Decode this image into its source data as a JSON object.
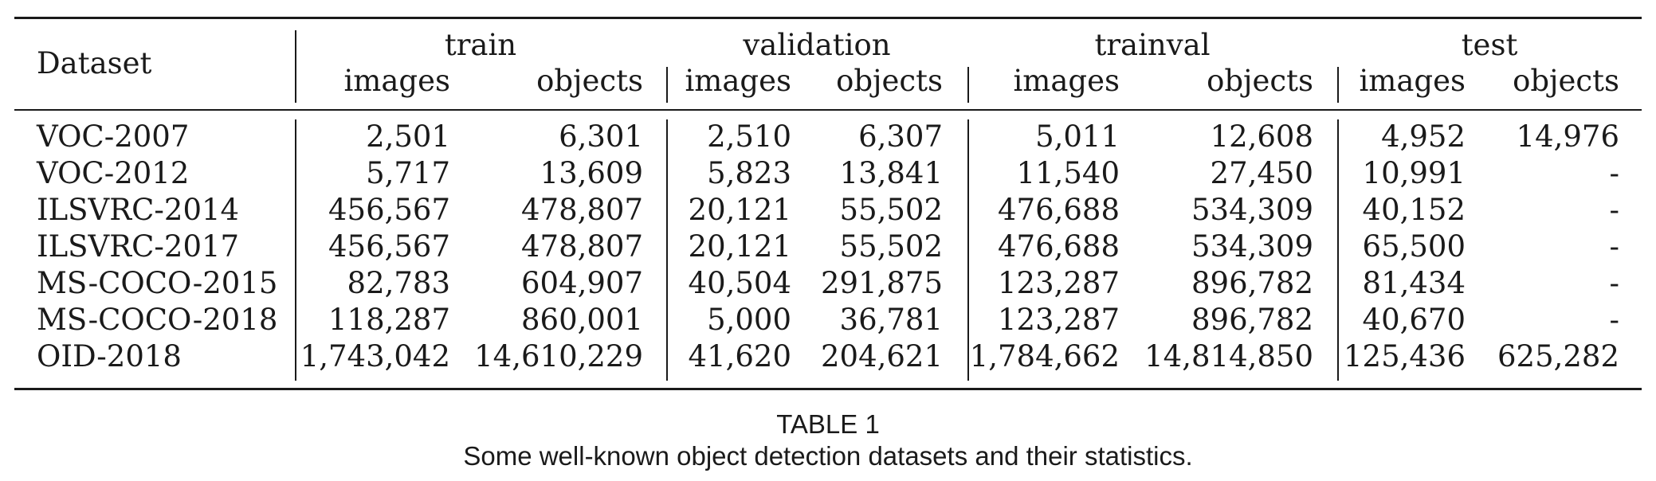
{
  "table": {
    "dataset_header": "Dataset",
    "groups": [
      "train",
      "validation",
      "trainval",
      "test"
    ],
    "subheaders": [
      "images",
      "objects",
      "images",
      "objects",
      "images",
      "objects",
      "images",
      "objects"
    ],
    "rows": [
      {
        "name": "VOC-2007",
        "cells": [
          "2,501",
          "6,301",
          "2,510",
          "6,307",
          "5,011",
          "12,608",
          "4,952",
          "14,976"
        ]
      },
      {
        "name": "VOC-2012",
        "cells": [
          "5,717",
          "13,609",
          "5,823",
          "13,841",
          "11,540",
          "27,450",
          "10,991",
          "-"
        ]
      },
      {
        "name": "ILSVRC-2014",
        "cells": [
          "456,567",
          "478,807",
          "20,121",
          "55,502",
          "476,688",
          "534,309",
          "40,152",
          "-"
        ]
      },
      {
        "name": "ILSVRC-2017",
        "cells": [
          "456,567",
          "478,807",
          "20,121",
          "55,502",
          "476,688",
          "534,309",
          "65,500",
          "-"
        ]
      },
      {
        "name": "MS-COCO-2015",
        "cells": [
          "82,783",
          "604,907",
          "40,504",
          "291,875",
          "123,287",
          "896,782",
          "81,434",
          "-"
        ]
      },
      {
        "name": "MS-COCO-2018",
        "cells": [
          "118,287",
          "860,001",
          "5,000",
          "36,781",
          "123,287",
          "896,782",
          "40,670",
          "-"
        ]
      },
      {
        "name": "OID-2018",
        "cells": [
          "1,743,042",
          "14,610,229",
          "41,620",
          "204,621",
          "1,784,662",
          "14,814,850",
          "125,436",
          "625,282"
        ]
      }
    ]
  },
  "caption": {
    "label": "TABLE 1",
    "text": "Some well-known object detection datasets and their statistics."
  }
}
